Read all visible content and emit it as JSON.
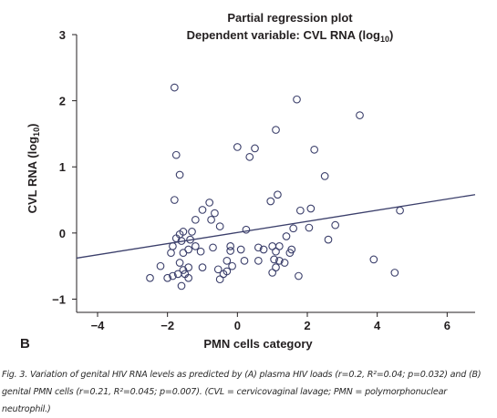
{
  "chart_data": {
    "type": "scatter",
    "title": "Partial regression plot",
    "subtitle_prefix": "Dependent variable: CVL RNA (log",
    "subtitle_sub": "10",
    "subtitle_suffix": ")",
    "ylabel_prefix": "CVL RNA (log",
    "ylabel_sub": "10",
    "ylabel_suffix": ")",
    "xlabel": "PMN cells category",
    "panel_label": "B",
    "xlim": [
      -4.6,
      6.8
    ],
    "ylim": [
      -1.2,
      3.0
    ],
    "xticks": [
      -4,
      -2,
      0,
      2,
      4,
      6
    ],
    "yticks": [
      -1,
      0,
      1,
      2,
      3
    ],
    "grid": false,
    "fit_line": {
      "x": [
        -4.6,
        6.8
      ],
      "y": [
        -0.38,
        0.58
      ]
    },
    "points": [
      [
        -1.8,
        2.2
      ],
      [
        -1.75,
        1.18
      ],
      [
        -1.65,
        0.88
      ],
      [
        -1.8,
        0.5
      ],
      [
        -0.8,
        0.46
      ],
      [
        -1.0,
        0.35
      ],
      [
        -0.65,
        0.3
      ],
      [
        -0.75,
        0.2
      ],
      [
        -1.2,
        0.2
      ],
      [
        -0.5,
        0.1
      ],
      [
        0.25,
        0.05
      ],
      [
        -1.3,
        0.02
      ],
      [
        -1.55,
        0.02
      ],
      [
        -1.65,
        -0.02
      ],
      [
        -1.75,
        -0.08
      ],
      [
        -1.35,
        -0.1
      ],
      [
        -1.6,
        -0.12
      ],
      [
        -1.85,
        -0.2
      ],
      [
        -1.2,
        -0.2
      ],
      [
        -0.2,
        -0.2
      ],
      [
        -1.4,
        -0.25
      ],
      [
        -0.7,
        -0.22
      ],
      [
        -1.05,
        -0.28
      ],
      [
        -1.55,
        -0.3
      ],
      [
        -0.2,
        -0.27
      ],
      [
        0.1,
        -0.25
      ],
      [
        -1.9,
        -0.3
      ],
      [
        -0.3,
        -0.42
      ],
      [
        -0.15,
        -0.5
      ],
      [
        -1.65,
        -0.45
      ],
      [
        -1.4,
        -0.52
      ],
      [
        -2.2,
        -0.5
      ],
      [
        -1.0,
        -0.52
      ],
      [
        -1.55,
        -0.56
      ],
      [
        -0.55,
        -0.55
      ],
      [
        -1.5,
        -0.62
      ],
      [
        -1.7,
        -0.62
      ],
      [
        -1.85,
        -0.65
      ],
      [
        -0.4,
        -0.62
      ],
      [
        -0.3,
        -0.58
      ],
      [
        -0.5,
        -0.7
      ],
      [
        -2.0,
        -0.68
      ],
      [
        -1.4,
        -0.68
      ],
      [
        -2.5,
        -0.68
      ],
      [
        -1.6,
        -0.8
      ],
      [
        0.0,
        1.3
      ],
      [
        0.5,
        1.28
      ],
      [
        0.35,
        1.15
      ],
      [
        1.1,
        1.56
      ],
      [
        1.7,
        2.02
      ],
      [
        2.2,
        1.26
      ],
      [
        1.15,
        0.58
      ],
      [
        0.95,
        0.48
      ],
      [
        2.5,
        0.86
      ],
      [
        3.5,
        1.78
      ],
      [
        2.1,
        0.37
      ],
      [
        1.8,
        0.34
      ],
      [
        1.6,
        0.07
      ],
      [
        2.8,
        0.12
      ],
      [
        2.05,
        0.08
      ],
      [
        4.65,
        0.34
      ],
      [
        1.0,
        -0.2
      ],
      [
        1.4,
        -0.05
      ],
      [
        1.55,
        -0.25
      ],
      [
        0.6,
        -0.22
      ],
      [
        0.75,
        -0.25
      ],
      [
        1.5,
        -0.3
      ],
      [
        1.2,
        -0.2
      ],
      [
        1.1,
        -0.28
      ],
      [
        2.6,
        -0.1
      ],
      [
        0.6,
        -0.42
      ],
      [
        1.2,
        -0.42
      ],
      [
        1.35,
        -0.45
      ],
      [
        1.1,
        -0.52
      ],
      [
        1.0,
        -0.6
      ],
      [
        1.75,
        -0.65
      ],
      [
        3.9,
        -0.4
      ],
      [
        4.5,
        -0.6
      ],
      [
        1.05,
        -0.4
      ],
      [
        0.2,
        -0.42
      ]
    ]
  },
  "caption": {
    "text": "Fig. 3. Variation of genital HIV RNA levels as predicted by (A) plasma HIV loads (r=0.2, R²=0.04; p=0.032) and (B) genital PMN cells (r=0.21, R²=0.045; p=0.007). (CVL = cervicovaginal lavage; PMN = polymorphonuclear neutrophil.)"
  }
}
